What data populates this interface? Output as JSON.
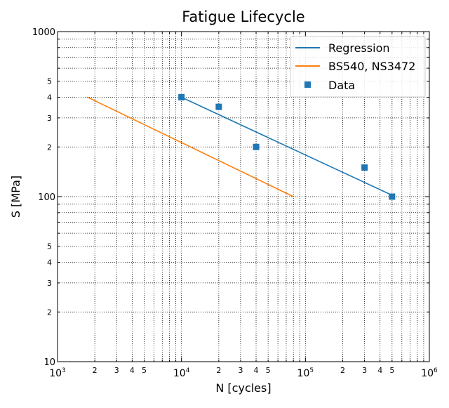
{
  "chart_data": {
    "type": "line",
    "title": "Fatigue Lifecycle",
    "xlabel": "N [cycles]",
    "ylabel": "S [MPa]",
    "xscale": "log",
    "yscale": "log",
    "xlim": [
      1000,
      1000000
    ],
    "ylim": [
      10,
      1000
    ],
    "grid": true,
    "legend_position": "top-right",
    "x_major_ticks": [
      {
        "value": 1000,
        "base": "10",
        "exp": "3"
      },
      {
        "value": 10000,
        "base": "10",
        "exp": "4"
      },
      {
        "value": 100000,
        "base": "10",
        "exp": "5"
      },
      {
        "value": 1000000,
        "base": "10",
        "exp": "6"
      }
    ],
    "x_minor_ticks": [
      {
        "value": 2000,
        "label": "2"
      },
      {
        "value": 3000,
        "label": "3"
      },
      {
        "value": 4000,
        "label": "4"
      },
      {
        "value": 5000,
        "label": "5"
      },
      {
        "value": 6000,
        "label": ""
      },
      {
        "value": 7000,
        "label": ""
      },
      {
        "value": 8000,
        "label": ""
      },
      {
        "value": 9000,
        "label": ""
      },
      {
        "value": 20000,
        "label": "2"
      },
      {
        "value": 30000,
        "label": "3"
      },
      {
        "value": 40000,
        "label": "4"
      },
      {
        "value": 50000,
        "label": "5"
      },
      {
        "value": 60000,
        "label": ""
      },
      {
        "value": 70000,
        "label": ""
      },
      {
        "value": 80000,
        "label": ""
      },
      {
        "value": 90000,
        "label": ""
      },
      {
        "value": 200000,
        "label": "2"
      },
      {
        "value": 300000,
        "label": "3"
      },
      {
        "value": 400000,
        "label": "4"
      },
      {
        "value": 500000,
        "label": "5"
      },
      {
        "value": 600000,
        "label": ""
      },
      {
        "value": 700000,
        "label": ""
      },
      {
        "value": 800000,
        "label": ""
      },
      {
        "value": 900000,
        "label": ""
      }
    ],
    "y_major_ticks": [
      {
        "value": 10,
        "label": "10"
      },
      {
        "value": 100,
        "label": "100"
      },
      {
        "value": 1000,
        "label": "1000"
      }
    ],
    "y_minor_ticks": [
      {
        "value": 20,
        "label": "2"
      },
      {
        "value": 30,
        "label": "3"
      },
      {
        "value": 40,
        "label": "4"
      },
      {
        "value": 50,
        "label": "5"
      },
      {
        "value": 60,
        "label": ""
      },
      {
        "value": 70,
        "label": ""
      },
      {
        "value": 80,
        "label": ""
      },
      {
        "value": 90,
        "label": ""
      },
      {
        "value": 200,
        "label": "2"
      },
      {
        "value": 300,
        "label": "3"
      },
      {
        "value": 400,
        "label": "4"
      },
      {
        "value": 500,
        "label": "5"
      },
      {
        "value": 600,
        "label": ""
      },
      {
        "value": 700,
        "label": ""
      },
      {
        "value": 800,
        "label": ""
      },
      {
        "value": 900,
        "label": ""
      }
    ],
    "series": [
      {
        "name": "Regression",
        "kind": "line",
        "color": "#1f77b4",
        "points": [
          [
            10000,
            400
          ],
          [
            500000,
            102
          ]
        ]
      },
      {
        "name": "BS540, NS3472",
        "kind": "line",
        "color": "#ff7f0e",
        "points": [
          [
            1750,
            400
          ],
          [
            80000,
            100
          ]
        ]
      },
      {
        "name": "Data",
        "kind": "scatter",
        "marker": "square",
        "color": "#1f77b4",
        "points": [
          [
            10000,
            400
          ],
          [
            20000,
            350
          ],
          [
            40000,
            200
          ],
          [
            300000,
            150
          ],
          [
            500000,
            100
          ]
        ]
      }
    ]
  }
}
